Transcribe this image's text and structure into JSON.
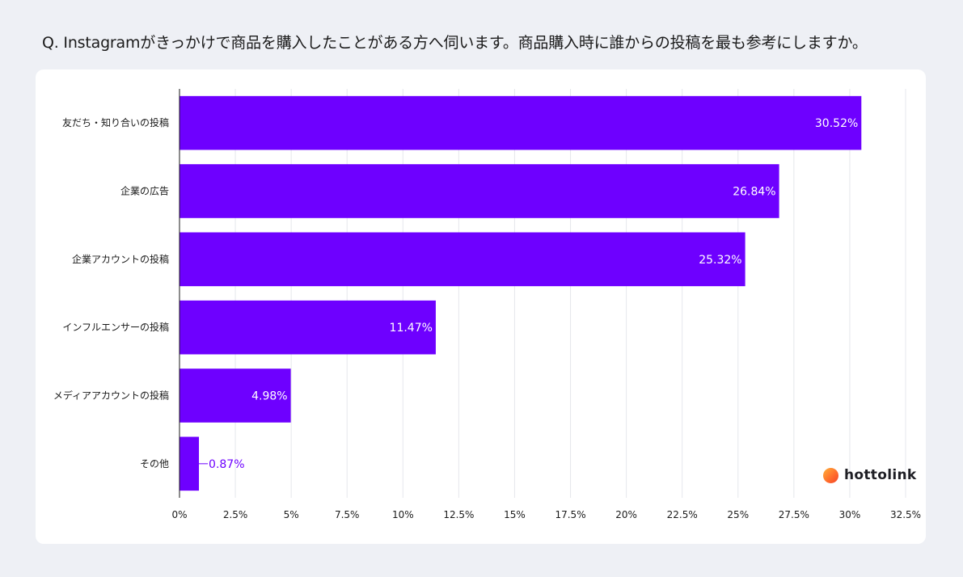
{
  "header": {
    "question": "Q. Instagramがきっかけで商品を購入したことがある方へ伺います。商品購入時に誰からの投稿を最も参考にしますか。"
  },
  "chart_data": {
    "type": "bar",
    "orientation": "horizontal",
    "categories": [
      "友だち・知り合いの投稿",
      "企業の広告",
      "企業アカウントの投稿",
      "インフルエンサーの投稿",
      "メディアアカウントの投稿",
      "その他"
    ],
    "values": [
      30.52,
      26.84,
      25.32,
      11.47,
      4.98,
      0.87
    ],
    "value_labels": [
      "30.52%",
      "26.84%",
      "25.32%",
      "11.47%",
      "4.98%",
      "0.87%"
    ],
    "xlim": [
      0,
      32.5
    ],
    "xticks": [
      0,
      2.5,
      5,
      7.5,
      10,
      12.5,
      15,
      17.5,
      20,
      22.5,
      25,
      27.5,
      30,
      32.5
    ],
    "xtick_labels": [
      "0%",
      "2.5%",
      "5%",
      "7.5%",
      "10%",
      "12.5%",
      "15%",
      "17.5%",
      "20%",
      "22.5%",
      "25%",
      "27.5%",
      "30%",
      "32.5%"
    ],
    "grid": true,
    "bar_color": "#6e00ff",
    "label_color_outside": "#6e00ff",
    "title": "",
    "xlabel": "",
    "ylabel": ""
  },
  "brand": {
    "logo_text": "hottolink"
  }
}
